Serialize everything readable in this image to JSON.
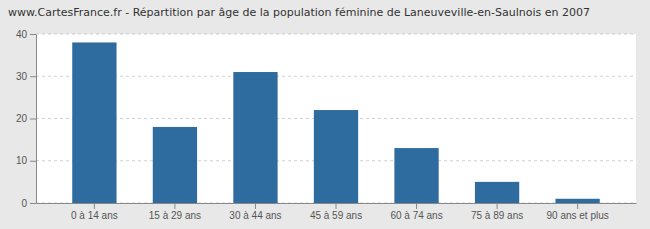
{
  "chart_data": {
    "type": "bar",
    "title": "www.CartesFrance.fr - Répartition par âge de la population féminine de Laneuveville-en-Saulnois en 2007",
    "categories": [
      "0 à 14 ans",
      "15 à 29 ans",
      "30 à 44 ans",
      "45 à 59 ans",
      "60 à 74 ans",
      "75 à 89 ans",
      "90 ans et plus"
    ],
    "values": [
      38,
      18,
      31,
      22,
      13,
      5,
      1
    ],
    "color": "#2e6b9e",
    "ylim": [
      0,
      40
    ],
    "yticks": [
      0,
      10,
      20,
      30,
      40
    ],
    "grid": true
  }
}
